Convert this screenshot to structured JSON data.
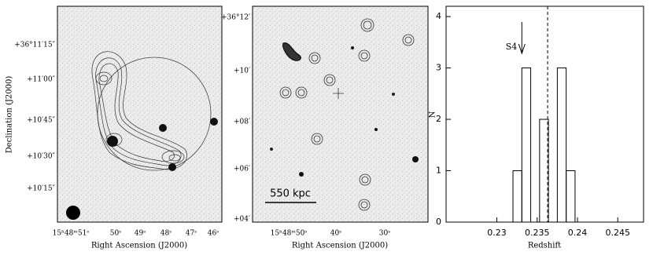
{
  "panels": [
    {
      "yticks": [
        "+36°11′15″",
        "+11′00″",
        "+10′45″",
        "+10′30″",
        "+10′15″"
      ],
      "xticks": [
        "15ʰ48ᵐ51ˢ",
        "50ˢ",
        "49ˢ",
        "48ˢ",
        "47ˢ",
        "46ˢ"
      ],
      "ylabel": "Declination (J2000)",
      "xlabel": "Right Ascension (J2000)"
    },
    {
      "yticks": [
        "+36°12′",
        "+10′",
        "+08′",
        "+06′",
        "+04′"
      ],
      "xticks": [
        "15ʰ48ᵐ50ˢ",
        "40ˢ",
        "30ˢ"
      ],
      "scale_bar": "550 kpc",
      "xlabel": "Right Ascension (J2000)"
    }
  ],
  "chart_data": {
    "type": "histogram",
    "xlabel": "Redshift",
    "ylabel": "N",
    "bins": [
      0.232,
      0.2331,
      0.2342,
      0.2353,
      0.2364,
      0.2375,
      0.2386,
      0.2397
    ],
    "counts": [
      1,
      3,
      0,
      2,
      0,
      3,
      1
    ],
    "xlim": [
      0.2237,
      0.2482
    ],
    "ylim": [
      0,
      4.2
    ],
    "xticks": [
      0.23,
      0.235,
      0.24,
      0.245
    ],
    "yticks": [
      0,
      1,
      2,
      3,
      4
    ],
    "mean_line": 0.2363,
    "arrow": {
      "label": "S4",
      "x": 0.2331
    },
    "color": "#000000"
  }
}
